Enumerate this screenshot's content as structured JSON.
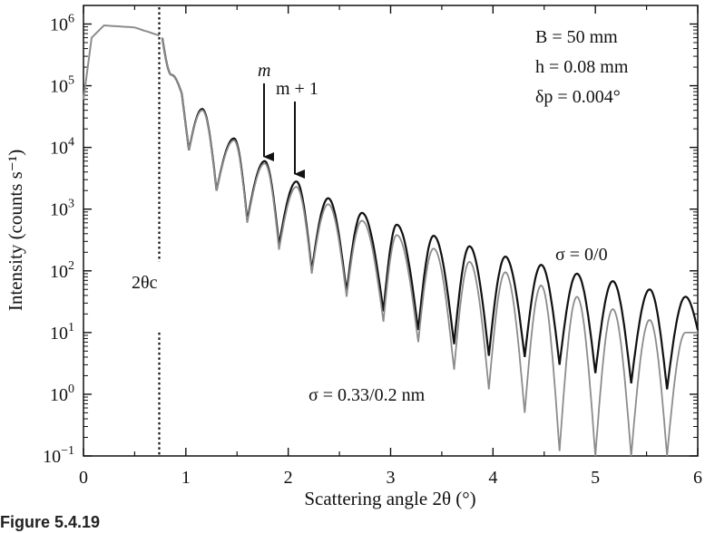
{
  "caption": "Figure 5.4.19",
  "chart_data": {
    "type": "line",
    "xlabel": "Scattering angle 2θ (°)",
    "ylabel": "Intensity (counts s⁻¹)",
    "xlim": [
      0,
      6
    ],
    "ylim": [
      0.1,
      2000000
    ],
    "yscale": "log",
    "x_ticks": [
      "0",
      "1",
      "2",
      "3",
      "4",
      "5",
      "6"
    ],
    "y_ticks": [
      {
        "base": "10",
        "exp": "−1",
        "value": 0.1
      },
      {
        "base": "10",
        "exp": "0",
        "value": 1
      },
      {
        "base": "10",
        "exp": "1",
        "value": 10
      },
      {
        "base": "10",
        "exp": "2",
        "value": 100
      },
      {
        "base": "10",
        "exp": "3",
        "value": 1000
      },
      {
        "base": "10",
        "exp": "4",
        "value": 10000
      },
      {
        "base": "10",
        "exp": "5",
        "value": 100000
      },
      {
        "base": "10",
        "exp": "6",
        "value": 1000000
      }
    ],
    "critical_angle": 0.74,
    "plateau": [
      [
        0.0,
        60000
      ],
      [
        0.08,
        600000
      ],
      [
        0.2,
        950000
      ],
      [
        0.5,
        880000
      ],
      [
        0.74,
        650000
      ]
    ],
    "series": [
      {
        "name": "σ = 0/0",
        "color": "#111111",
        "maxima": [
          {
            "x": 0.86,
            "y": 150000
          },
          {
            "x": 1.16,
            "y": 42000
          },
          {
            "x": 1.47,
            "y": 14000
          },
          {
            "x": 1.77,
            "y": 6000
          },
          {
            "x": 2.08,
            "y": 2800
          },
          {
            "x": 2.39,
            "y": 1500
          },
          {
            "x": 2.72,
            "y": 870
          },
          {
            "x": 3.06,
            "y": 560
          },
          {
            "x": 3.42,
            "y": 370
          },
          {
            "x": 3.77,
            "y": 250
          },
          {
            "x": 4.12,
            "y": 170
          },
          {
            "x": 4.47,
            "y": 125
          },
          {
            "x": 4.82,
            "y": 90
          },
          {
            "x": 5.17,
            "y": 68
          },
          {
            "x": 5.53,
            "y": 50
          },
          {
            "x": 5.88,
            "y": 38
          }
        ],
        "minima": [
          {
            "x": 0.77,
            "y": 600000
          },
          {
            "x": 0.96,
            "y": 75000
          },
          {
            "x": 1.03,
            "y": 9000
          },
          {
            "x": 1.3,
            "y": 2000
          },
          {
            "x": 1.6,
            "y": 650
          },
          {
            "x": 1.91,
            "y": 260
          },
          {
            "x": 2.23,
            "y": 100
          },
          {
            "x": 2.57,
            "y": 45
          },
          {
            "x": 2.93,
            "y": 22
          },
          {
            "x": 3.27,
            "y": 11
          },
          {
            "x": 3.62,
            "y": 6.5
          },
          {
            "x": 3.96,
            "y": 4.2
          },
          {
            "x": 4.31,
            "y": 4.0
          },
          {
            "x": 4.65,
            "y": 3.0
          },
          {
            "x": 5.0,
            "y": 2.2
          },
          {
            "x": 5.35,
            "y": 1.5
          },
          {
            "x": 5.7,
            "y": 1.2
          },
          {
            "x": 6.0,
            "y": 11
          }
        ]
      },
      {
        "name": "σ = 0.33/0.2 nm",
        "color": "#8c8c8c",
        "maxima": [
          {
            "x": 0.86,
            "y": 150000
          },
          {
            "x": 1.16,
            "y": 40000
          },
          {
            "x": 1.47,
            "y": 13000
          },
          {
            "x": 1.77,
            "y": 5500
          },
          {
            "x": 2.08,
            "y": 2300
          },
          {
            "x": 2.39,
            "y": 1200
          },
          {
            "x": 2.72,
            "y": 650
          },
          {
            "x": 3.06,
            "y": 380
          },
          {
            "x": 3.42,
            "y": 230
          },
          {
            "x": 3.77,
            "y": 140
          },
          {
            "x": 4.12,
            "y": 95
          },
          {
            "x": 4.47,
            "y": 58
          },
          {
            "x": 4.82,
            "y": 38
          },
          {
            "x": 5.17,
            "y": 24
          },
          {
            "x": 5.53,
            "y": 16
          },
          {
            "x": 5.88,
            "y": 10
          }
        ],
        "minima": [
          {
            "x": 0.77,
            "y": 600000
          },
          {
            "x": 0.96,
            "y": 75000
          },
          {
            "x": 1.03,
            "y": 9000
          },
          {
            "x": 1.3,
            "y": 2000
          },
          {
            "x": 1.6,
            "y": 600
          },
          {
            "x": 1.91,
            "y": 220
          },
          {
            "x": 2.23,
            "y": 90
          },
          {
            "x": 2.57,
            "y": 38
          },
          {
            "x": 2.93,
            "y": 15
          },
          {
            "x": 3.27,
            "y": 7
          },
          {
            "x": 3.62,
            "y": 2.5
          },
          {
            "x": 3.96,
            "y": 1.2
          },
          {
            "x": 4.31,
            "y": 0.5
          },
          {
            "x": 4.65,
            "y": 0.12
          },
          {
            "x": 5.0,
            "y": 0.1
          },
          {
            "x": 5.35,
            "y": 0.1
          },
          {
            "x": 5.7,
            "y": 0.1
          },
          {
            "x": 6.0,
            "y": 10
          }
        ]
      }
    ],
    "annotations": {
      "m": "m",
      "m_plus_1": "m + 1",
      "two_theta_c": "2θc",
      "params": [
        "B = 50 mm",
        "h = 0.08 mm",
        "δp = 0.004°"
      ],
      "sigma_smooth": "σ = 0/0",
      "sigma_rough": "σ = 0.33/0.2 nm"
    }
  }
}
